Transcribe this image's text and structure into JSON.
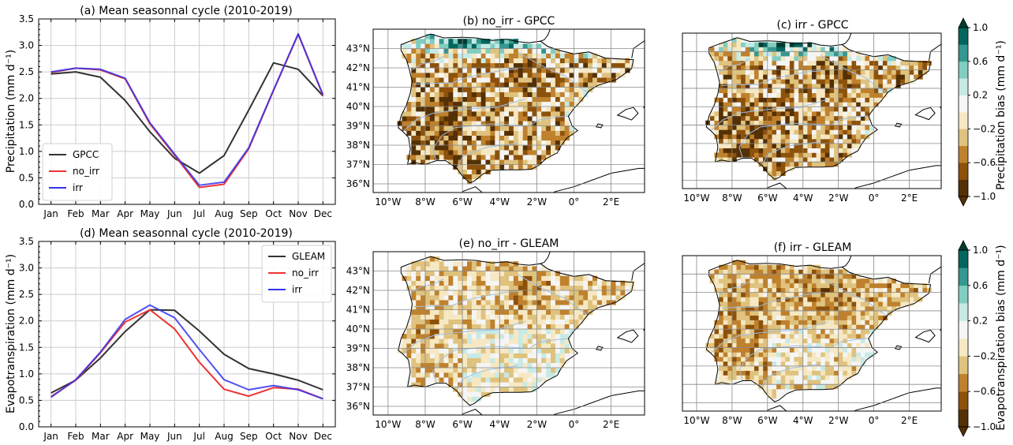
{
  "colors": {
    "obs": "#333333",
    "no_irr": "#ee3333",
    "irr": "#3333ee",
    "overlap": "#5511bb",
    "grid": "#cccccc",
    "land": "#ffffff",
    "river": "#9fbfe6",
    "map_grid": "#888888",
    "palette": [
      "#543005",
      "#8c510a",
      "#bf812d",
      "#dfc27d",
      "#f6e8c3",
      "#f5f5f5",
      "#c7eae5",
      "#80cdc1",
      "#35978f",
      "#01665e",
      "#003c30"
    ]
  },
  "chart_data": [
    {
      "type": "line",
      "id": "a",
      "title": "(a) Mean seasonnal cycle (2010-2019)",
      "ylabel": "Precipitation (mm d⁻¹)",
      "xlabel": "",
      "ylim": [
        0,
        3.5
      ],
      "yticks": [
        "0.0",
        "0.5",
        "1.0",
        "1.5",
        "2.0",
        "2.5",
        "3.0",
        "3.5"
      ],
      "categories": [
        "Jan",
        "Feb",
        "Mar",
        "Apr",
        "May",
        "Jun",
        "Jul",
        "Aug",
        "Sep",
        "Oct",
        "Nov",
        "Dec"
      ],
      "grid": true,
      "legend": "lower-left",
      "series": [
        {
          "name": "GPCC",
          "values": [
            2.46,
            2.5,
            2.4,
            1.96,
            1.37,
            0.87,
            0.59,
            0.92,
            1.78,
            2.67,
            2.55,
            2.05
          ]
        },
        {
          "name": "no_irr",
          "values": [
            2.49,
            2.57,
            2.54,
            2.37,
            1.52,
            0.93,
            0.32,
            0.38,
            1.05,
            2.15,
            3.21,
            2.06
          ]
        },
        {
          "name": "irr",
          "values": [
            2.5,
            2.57,
            2.55,
            2.38,
            1.54,
            0.95,
            0.36,
            0.42,
            1.07,
            2.16,
            3.22,
            2.07
          ]
        }
      ]
    },
    {
      "type": "line",
      "id": "d",
      "title": "(d) Mean seasonnal cycle (2010-2019)",
      "ylabel": "Evapotranspiration (mm d⁻¹)",
      "xlabel": "",
      "ylim": [
        0,
        3.5
      ],
      "yticks": [
        "0.0",
        "0.5",
        "1.0",
        "1.5",
        "2.0",
        "2.5",
        "3.0",
        "3.5"
      ],
      "categories": [
        "Jan",
        "Feb",
        "Mar",
        "Apr",
        "May",
        "Jun",
        "Jul",
        "Aug",
        "Sep",
        "Oct",
        "Nov",
        "Dec"
      ],
      "grid": true,
      "legend": "top-right",
      "series": [
        {
          "name": "GLEAM",
          "values": [
            0.64,
            0.88,
            1.3,
            1.8,
            2.21,
            2.2,
            1.81,
            1.37,
            1.1,
            1.0,
            0.88,
            0.7
          ]
        },
        {
          "name": "no_irr",
          "values": [
            0.57,
            0.88,
            1.4,
            1.98,
            2.21,
            1.85,
            1.22,
            0.71,
            0.58,
            0.74,
            0.71,
            0.53
          ]
        },
        {
          "name": "irr",
          "values": [
            0.56,
            0.89,
            1.41,
            2.03,
            2.3,
            2.06,
            1.46,
            0.89,
            0.7,
            0.78,
            0.7,
            0.53
          ]
        }
      ]
    },
    {
      "type": "heatmap",
      "id": "b",
      "title": "(b) no_irr - GPCC",
      "lon_ticks": [
        "10°W",
        "8°W",
        "6°W",
        "4°W",
        "2°W",
        "0°",
        "2°E"
      ],
      "lat_ticks": [
        "43°N",
        "42°N",
        "41°N",
        "40°N",
        "39°N",
        "38°N",
        "37°N",
        "36°N"
      ],
      "show_lat_labels": true
    },
    {
      "type": "heatmap",
      "id": "c",
      "title": "(c) irr - GPCC",
      "lon_ticks": [
        "10°W",
        "8°W",
        "6°W",
        "4°W",
        "2°W",
        "0°",
        "2°E"
      ],
      "lat_ticks": [],
      "show_lat_labels": false
    },
    {
      "type": "heatmap",
      "id": "e",
      "title": "(e) no_irr - GLEAM",
      "lon_ticks": [
        "10°W",
        "8°W",
        "6°W",
        "4°W",
        "2°W",
        "0°",
        "2°E"
      ],
      "lat_ticks": [
        "43°N",
        "42°N",
        "41°N",
        "40°N",
        "39°N",
        "38°N",
        "37°N",
        "36°N"
      ],
      "show_lat_labels": true
    },
    {
      "type": "heatmap",
      "id": "f",
      "title": "(f) irr - GLEAM",
      "lon_ticks": [
        "10°W",
        "8°W",
        "6°W",
        "4°W",
        "2°W",
        "0°",
        "2°E"
      ],
      "lat_ticks": [],
      "show_lat_labels": false
    }
  ],
  "colorbars": [
    {
      "label": "Precipitation bias (mm d⁻¹)",
      "ticks": [
        "1.0",
        "0.6",
        "0.2",
        "−0.2",
        "−0.6",
        "−1.0"
      ]
    },
    {
      "label": "Evapotranspiration bias (mm d⁻¹)",
      "ticks": [
        "1.0",
        "0.6",
        "0.2",
        "−0.2",
        "−0.6",
        "−1.0"
      ]
    }
  ]
}
